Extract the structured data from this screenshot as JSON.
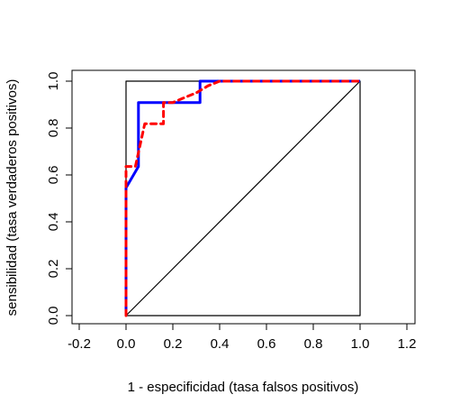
{
  "chart_data": {
    "type": "line",
    "title": "",
    "xlabel": "1 - especificidad (tasa falsos positivos)",
    "ylabel": "sensibilidad (tasa verdaderos positivos)",
    "xlim": [
      -0.2,
      1.2
    ],
    "ylim": [
      0,
      1
    ],
    "xticks": [
      "-0.2",
      "0.0",
      "0.2",
      "0.4",
      "0.6",
      "0.8",
      "1.0",
      "1.2"
    ],
    "yticks": [
      "0.0",
      "0.2",
      "0.4",
      "0.6",
      "0.8",
      "1.0"
    ],
    "grid": false,
    "legend": "none",
    "series": [
      {
        "style": "solid",
        "color": "#0000ff",
        "x": [
          0,
          0,
          0.053,
          0.053,
          0.316,
          0.316,
          1.0
        ],
        "y": [
          0,
          0.545,
          0.636,
          0.909,
          0.909,
          1.0,
          1.0
        ]
      },
      {
        "style": "dashed",
        "color": "#ff0000",
        "x": [
          0,
          0,
          0.02,
          0.04,
          0.06,
          0.08,
          0.1,
          0.12,
          0.14,
          0.16,
          0.16,
          0.2,
          0.25,
          0.3,
          0.35,
          0.4,
          0.45,
          1.0
        ],
        "y": [
          0,
          0.636,
          0.636,
          0.636,
          0.727,
          0.818,
          0.818,
          0.818,
          0.818,
          0.818,
          0.909,
          0.909,
          0.93,
          0.95,
          0.98,
          1.0,
          1.0,
          1.0
        ]
      },
      {
        "style": "solid",
        "color": "#000000",
        "x": [
          0,
          0,
          1,
          1,
          0
        ],
        "y": [
          0,
          1,
          1,
          0,
          0
        ]
      },
      {
        "style": "solid",
        "color": "#000000",
        "x": [
          0,
          1
        ],
        "y": [
          0,
          1
        ]
      }
    ]
  }
}
